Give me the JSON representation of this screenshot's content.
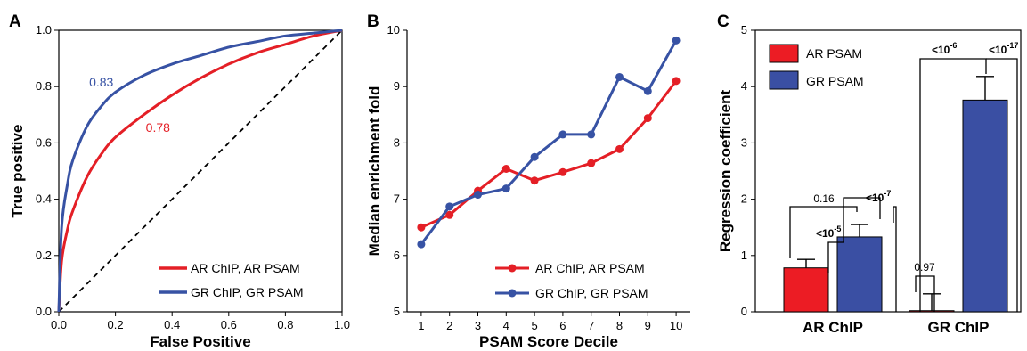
{
  "panels": {
    "a": "A",
    "b": "B",
    "c": "C"
  },
  "colors": {
    "red": "#e41f26",
    "blue": "#3752a4",
    "bar_red": "#ec1c24",
    "bar_blue": "#3a4fa3"
  },
  "chart_data": [
    {
      "id": "A",
      "type": "line",
      "xlabel": "False Positive",
      "ylabel": "True positive",
      "xlim": [
        0,
        1
      ],
      "ylim": [
        0,
        1
      ],
      "xticks": [
        "0.0",
        "0.2",
        "0.4",
        "0.6",
        "0.8",
        "1.0"
      ],
      "yticks": [
        "0.0",
        "0.2",
        "0.4",
        "0.6",
        "0.8",
        "1.0"
      ],
      "series": [
        {
          "name": "AR ChIP, AR PSAM",
          "color": "#e41f26",
          "auc_label": "0.78",
          "x": [
            0,
            0.01,
            0.03,
            0.05,
            0.1,
            0.15,
            0.2,
            0.3,
            0.4,
            0.5,
            0.6,
            0.7,
            0.8,
            0.9,
            1.0
          ],
          "y": [
            0,
            0.18,
            0.29,
            0.36,
            0.48,
            0.56,
            0.62,
            0.7,
            0.77,
            0.83,
            0.88,
            0.92,
            0.95,
            0.98,
            1.0
          ]
        },
        {
          "name": "GR ChIP, GR PSAM",
          "color": "#3752a4",
          "auc_label": "0.83",
          "x": [
            0,
            0.01,
            0.03,
            0.05,
            0.1,
            0.15,
            0.2,
            0.3,
            0.4,
            0.5,
            0.6,
            0.7,
            0.8,
            0.9,
            1.0
          ],
          "y": [
            0,
            0.3,
            0.45,
            0.54,
            0.66,
            0.73,
            0.78,
            0.84,
            0.88,
            0.91,
            0.94,
            0.96,
            0.98,
            0.99,
            1.0
          ]
        }
      ],
      "diagonal": true,
      "legend": "bottom-right"
    },
    {
      "id": "B",
      "type": "line",
      "xlabel": "PSAM Score Decile",
      "ylabel": "Median enrichment fold",
      "xlim": [
        0.5,
        10.5
      ],
      "ylim": [
        5,
        10
      ],
      "x": [
        1,
        2,
        3,
        4,
        5,
        6,
        7,
        8,
        9,
        10
      ],
      "yticks": [
        "5",
        "6",
        "7",
        "8",
        "9",
        "10"
      ],
      "series": [
        {
          "name": "AR ChIP, AR PSAM",
          "color": "#e41f26",
          "values": [
            6.5,
            6.72,
            7.15,
            7.54,
            7.33,
            7.48,
            7.64,
            7.89,
            8.44,
            9.1
          ]
        },
        {
          "name": "GR ChIP, GR PSAM",
          "color": "#3752a4",
          "values": [
            6.2,
            6.87,
            7.08,
            7.19,
            7.75,
            8.15,
            8.15,
            9.17,
            8.92,
            9.82
          ]
        }
      ],
      "legend": "bottom-right"
    },
    {
      "id": "C",
      "type": "bar",
      "ylabel": "Regression coefficient",
      "ylim": [
        0,
        5
      ],
      "yticks": [
        "0",
        "1",
        "2",
        "3",
        "4",
        "5"
      ],
      "categories": [
        "AR ChIP",
        "GR ChIP"
      ],
      "series": [
        {
          "name": "AR PSAM",
          "color": "#ec1c24",
          "values": [
            0.78,
            0.02
          ],
          "errors": [
            0.15,
            0.3
          ]
        },
        {
          "name": "GR PSAM",
          "color": "#3a4fa3",
          "values": [
            1.33,
            3.76
          ],
          "errors": [
            0.22,
            0.42
          ]
        }
      ],
      "annotations": {
        "ar_inner": {
          "base": "<10",
          "exp": "-5"
        },
        "ar_outer": {
          "text": "0.16"
        },
        "ar_right": {
          "base": "<10",
          "exp": "-7"
        },
        "gr_inner": {
          "text": "0.97"
        },
        "gr_top_left": {
          "base": "<10",
          "exp": "-6"
        },
        "gr_top_right": {
          "base": "<10",
          "exp": "-17"
        }
      },
      "legend": "top-left"
    }
  ]
}
